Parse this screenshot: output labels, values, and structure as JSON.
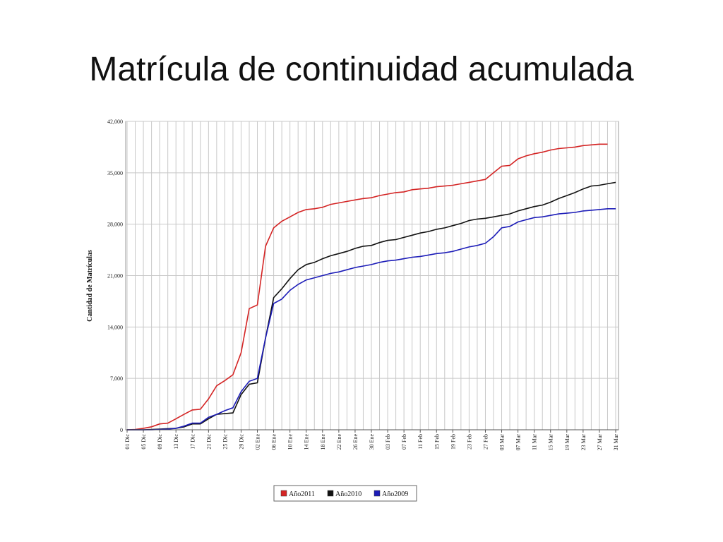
{
  "chart_data": {
    "type": "line",
    "title": "Matrícula de continuidad acumulada",
    "y_label": "Cantidad de Matrículas",
    "categories": [
      "01 Dic",
      null,
      "05 Dic",
      null,
      "09 Dic",
      null,
      "13 Dic",
      null,
      "17 Dic",
      null,
      "21 Dic",
      null,
      "25 Dic",
      null,
      "29 Dic",
      null,
      "02 Ene",
      null,
      "06 Ene",
      null,
      "10 Ene",
      null,
      "14 Ene",
      null,
      "18 Ene",
      null,
      "22 Ene",
      null,
      "26 Ene",
      null,
      "30 Ene",
      null,
      "03 Feb",
      null,
      "07 Feb",
      null,
      "11 Feb",
      null,
      "15 Feb",
      null,
      "19 Feb",
      null,
      "23 Feb",
      null,
      "27 Feb",
      null,
      "03 Mar",
      null,
      "07 Mar",
      null,
      "11 Mar",
      null,
      "15 Mar",
      null,
      "19 Mar",
      null,
      "23 Mar",
      null,
      "27 Mar",
      null,
      "31 Mar"
    ],
    "series": [
      {
        "name": "Año2011",
        "color": "#d42424",
        "values": [
          0,
          50,
          200,
          400,
          800,
          900,
          1500,
          2100,
          2700,
          2800,
          4200,
          6000,
          6700,
          7500,
          10500,
          16500,
          17000,
          25000,
          27500,
          28400,
          29000,
          29600,
          30000,
          30100,
          30300,
          30700,
          30900,
          31100,
          31300,
          31500,
          31600,
          31900,
          32100,
          32300,
          32400,
          32700,
          32800,
          32900,
          33100,
          33200,
          33300,
          33500,
          33700,
          33900,
          34100,
          35000,
          35900,
          36000,
          36900,
          37300,
          37600,
          37800,
          38100,
          38300,
          38400,
          38500,
          38700,
          38800,
          38900,
          38900,
          null
        ]
      },
      {
        "name": "Año2010",
        "color": "#111111",
        "values": [
          0,
          0,
          0,
          50,
          100,
          150,
          200,
          400,
          800,
          800,
          1500,
          2100,
          2200,
          2300,
          4800,
          6200,
          6400,
          12500,
          18000,
          19200,
          20600,
          21800,
          22500,
          22800,
          23300,
          23700,
          24000,
          24300,
          24700,
          25000,
          25100,
          25500,
          25800,
          25900,
          26200,
          26500,
          26800,
          27000,
          27300,
          27500,
          27800,
          28100,
          28500,
          28700,
          28800,
          29000,
          29200,
          29400,
          29800,
          30100,
          30400,
          30600,
          31000,
          31500,
          31900,
          32300,
          32800,
          33200,
          33300,
          33500,
          33700
        ]
      },
      {
        "name": "Año2009",
        "color": "#1c1cb8",
        "values": [
          0,
          0,
          0,
          0,
          50,
          100,
          200,
          500,
          900,
          900,
          1700,
          2100,
          2600,
          3000,
          5200,
          6600,
          7000,
          12500,
          17200,
          17800,
          19000,
          19800,
          20400,
          20700,
          21000,
          21300,
          21500,
          21800,
          22100,
          22300,
          22500,
          22800,
          23000,
          23100,
          23300,
          23500,
          23600,
          23800,
          24000,
          24100,
          24300,
          24600,
          24900,
          25100,
          25400,
          26300,
          27500,
          27700,
          28300,
          28600,
          28900,
          29000,
          29200,
          29400,
          29500,
          29600,
          29800,
          29900,
          30000,
          30100,
          30100
        ]
      }
    ],
    "ylim": [
      0,
      42000
    ],
    "yticks": [
      {
        "value": 0,
        "label": "0"
      },
      {
        "value": 7000,
        "label": "7,000"
      },
      {
        "value": 14000,
        "label": "14,000"
      },
      {
        "value": 21000,
        "label": "21,000"
      },
      {
        "value": 28000,
        "label": "28,000"
      },
      {
        "value": 35000,
        "label": "35,000"
      },
      {
        "value": 42000,
        "label": "42,000"
      }
    ],
    "grid": true,
    "legend_position": "bottom"
  }
}
